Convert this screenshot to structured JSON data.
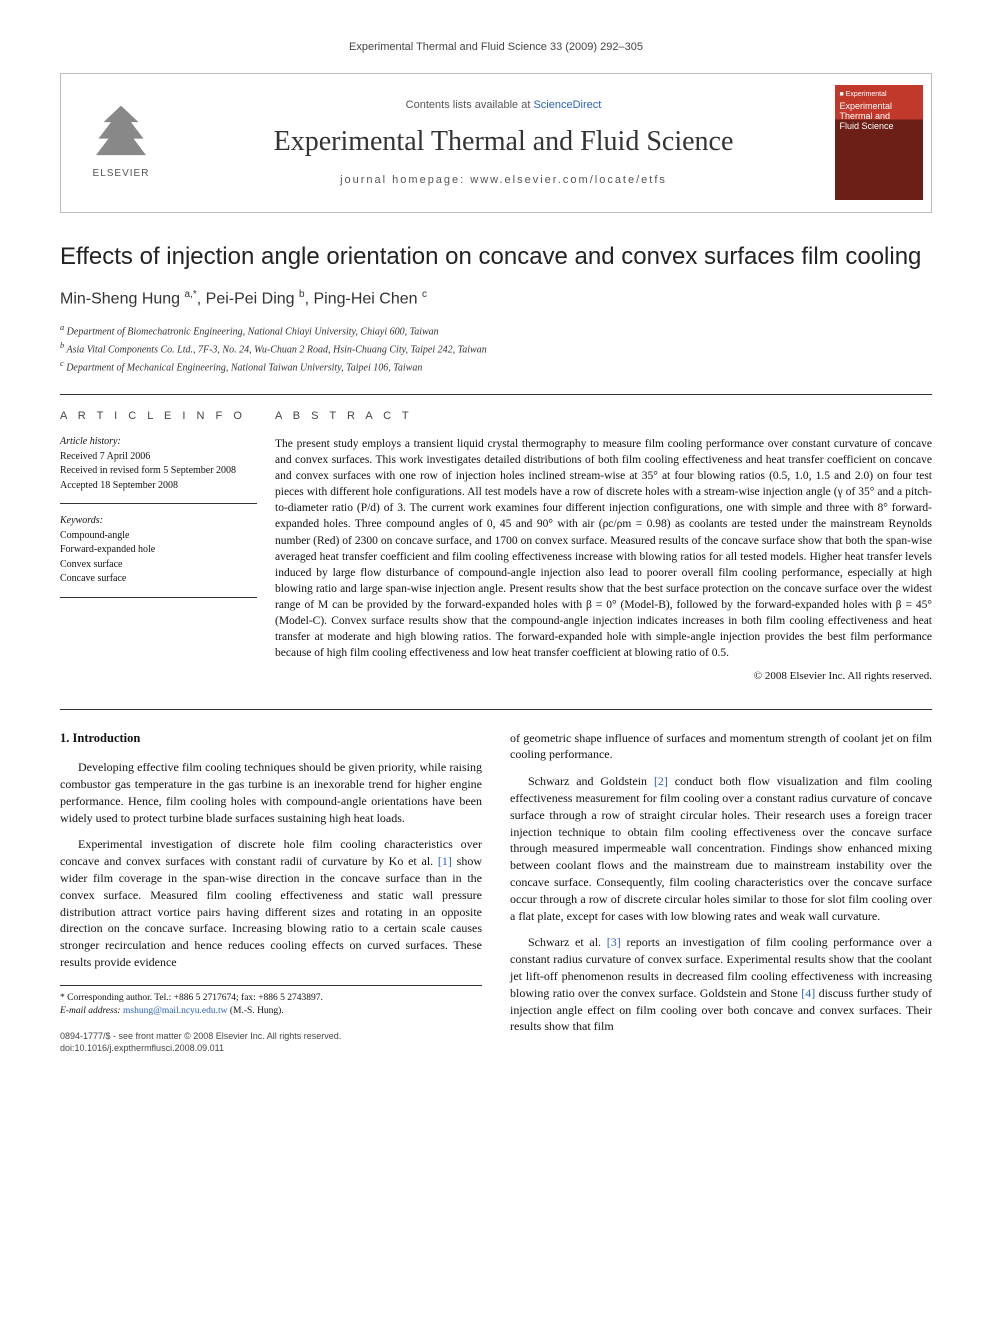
{
  "running_head": "Experimental Thermal and Fluid Science 33 (2009) 292–305",
  "journal_box": {
    "publisher_label": "ELSEVIER",
    "contents_prefix": "Contents lists available at ",
    "contents_link": "ScienceDirect",
    "journal_title": "Experimental Thermal and Fluid Science",
    "homepage_prefix": "journal homepage: ",
    "homepage_url": "www.elsevier.com/locate/etfs",
    "cover_small_text": "■ Experimental",
    "cover_title_l1": "Experimental",
    "cover_title_l2": "Thermal and",
    "cover_title_l3": "Fluid Science"
  },
  "article": {
    "title": "Effects of injection angle orientation on concave and convex surfaces film cooling",
    "authors_html": "Min-Sheng Hung <sup>a,*</sup>, Pei-Pei Ding <sup>b</sup>, Ping-Hei Chen <sup>c</sup>",
    "affiliations": {
      "a": "Department of Biomechatronic Engineering, National Chiayi University, Chiayi 600, Taiwan",
      "b": "Asia Vital Components Co. Ltd., 7F-3, No. 24, Wu-Chuan 2 Road, Hsin-Chuang City, Taipei 242, Taiwan",
      "c": "Department of Mechanical Engineering, National Taiwan University, Taipei 106, Taiwan"
    }
  },
  "article_info": {
    "header": "A R T I C L E   I N F O",
    "history_label": "Article history:",
    "received": "Received 7 April 2006",
    "revised": "Received in revised form 5 September 2008",
    "accepted": "Accepted 18 September 2008",
    "keywords_label": "Keywords:",
    "keywords": [
      "Compound-angle",
      "Forward-expanded hole",
      "Convex surface",
      "Concave surface"
    ]
  },
  "abstract": {
    "header": "A B S T R A C T",
    "text": "The present study employs a transient liquid crystal thermography to measure film cooling performance over constant curvature of concave and convex surfaces. This work investigates detailed distributions of both film cooling effectiveness and heat transfer coefficient on concave and convex surfaces with one row of injection holes inclined stream-wise at 35° at four blowing ratios (0.5, 1.0, 1.5 and 2.0) on four test pieces with different hole configurations. All test models have a row of discrete holes with a stream-wise injection angle (γ of 35° and a pitch-to-diameter ratio (P/d) of 3. The current work examines four different injection configurations, one with simple and three with 8° forward-expanded holes. Three compound angles of 0, 45 and 90° with air (ρc/ρm = 0.98) as coolants are tested under the mainstream Reynolds number (Red) of 2300 on concave surface, and 1700 on convex surface. Measured results of the concave surface show that both the span-wise averaged heat transfer coefficient and film cooling effectiveness increase with blowing ratios for all tested models. Higher heat transfer levels induced by large flow disturbance of compound-angle injection also lead to poorer overall film cooling performance, especially at high blowing ratio and large span-wise injection angle. Present results show that the best surface protection on the concave surface over the widest range of M can be provided by the forward-expanded holes with β = 0° (Model-B), followed by the forward-expanded holes with β = 45° (Model-C). Convex surface results show that the compound-angle injection indicates increases in both film cooling effectiveness and heat transfer at moderate and high blowing ratios. The forward-expanded hole with simple-angle injection provides the best film performance because of high film cooling effectiveness and low heat transfer coefficient at blowing ratio of 0.5.",
    "copyright": "© 2008 Elsevier Inc. All rights reserved."
  },
  "body": {
    "section_heading": "1. Introduction",
    "left_paras": [
      "Developing effective film cooling techniques should be given priority, while raising combustor gas temperature in the gas turbine is an inexorable trend for higher engine performance. Hence, film cooling holes with compound-angle orientations have been widely used to protect turbine blade surfaces sustaining high heat loads.",
      "Experimental investigation of discrete hole film cooling characteristics over concave and convex surfaces with constant radii of curvature by Ko et al. [1] show wider film coverage in the span-wise direction in the concave surface than in the convex surface. Measured film cooling effectiveness and static wall pressure distribution attract vortice pairs having different sizes and rotating in an opposite direction on the concave surface. Increasing blowing ratio to a certain scale causes stronger recirculation and hence reduces cooling effects on curved surfaces. These results provide evidence"
    ],
    "right_paras": [
      "of geometric shape influence of surfaces and momentum strength of coolant jet on film cooling performance.",
      "Schwarz and Goldstein [2] conduct both flow visualization and film cooling effectiveness measurement for film cooling over a constant radius curvature of concave surface through a row of straight circular holes. Their research uses a foreign tracer injection technique to obtain film cooling effectiveness over the concave surface through measured impermeable wall concentration. Findings show enhanced mixing between coolant flows and the mainstream due to mainstream instability over the concave surface. Consequently, film cooling characteristics over the concave surface occur through a row of discrete circular holes similar to those for slot film cooling over a flat plate, except for cases with low blowing rates and weak wall curvature.",
      "Schwarz et al. [3] reports an investigation of film cooling performance over a constant radius curvature of convex surface. Experimental results show that the coolant jet lift-off phenomenon results in decreased film cooling effectiveness with increasing blowing ratio over the convex surface. Goldstein and Stone [4] discuss further study of injection angle effect on film cooling over both concave and convex surfaces. Their results show that film"
    ]
  },
  "footnote": {
    "corresponding": "* Corresponding author. Tel.: +886 5 2717674; fax: +886 5 2743897.",
    "email_label": "E-mail address:",
    "email": "mshung@mail.ncyu.edu.tw",
    "email_author": "(M.-S. Hung)."
  },
  "footer": {
    "line1": "0894-1777/$ - see front matter © 2008 Elsevier Inc. All rights reserved.",
    "line2": "doi:10.1016/j.expthermflusci.2008.09.011"
  },
  "colors": {
    "link": "#2a62b8",
    "rule": "#333333",
    "cover_red_top": "#c1392b",
    "cover_red_bottom": "#6b1f16"
  }
}
